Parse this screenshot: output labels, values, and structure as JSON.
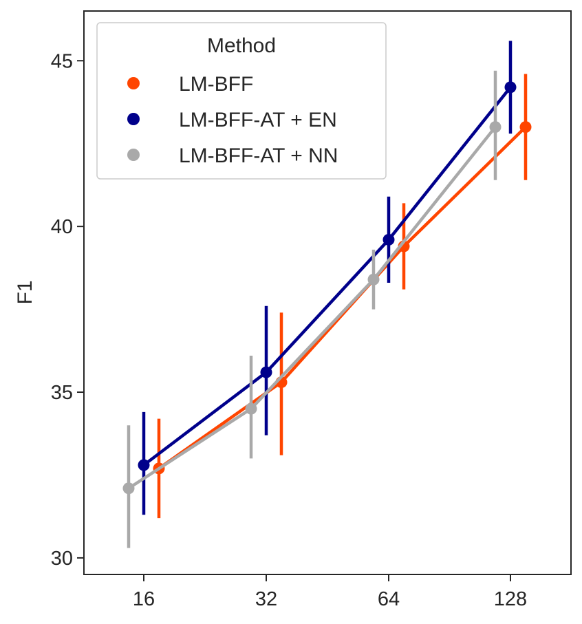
{
  "chart_data": {
    "type": "line",
    "xlabel": "",
    "ylabel": "F1",
    "categories": [
      "16",
      "32",
      "64",
      "128"
    ],
    "ylim": [
      29.5,
      46.5
    ],
    "yticks": [
      30,
      35,
      40,
      45
    ],
    "grid": false,
    "legend": {
      "title": "Method",
      "placement": "top-left"
    },
    "series": [
      {
        "name": "LM-BFF",
        "color": "#ff4500",
        "values": [
          32.7,
          35.3,
          39.4,
          43.0
        ],
        "ci_low": [
          31.2,
          33.1,
          38.1,
          41.4
        ],
        "ci_high": [
          34.2,
          37.4,
          40.7,
          44.6
        ]
      },
      {
        "name": "LM-BFF-AT + EN",
        "color": "#00008b",
        "values": [
          32.8,
          35.6,
          39.6,
          44.2
        ],
        "ci_low": [
          31.3,
          33.7,
          38.3,
          42.8
        ],
        "ci_high": [
          34.4,
          37.6,
          40.9,
          45.6
        ]
      },
      {
        "name": "LM-BFF-AT + NN",
        "color": "#a9a9a9",
        "values": [
          32.1,
          34.5,
          38.4,
          43.0
        ],
        "ci_low": [
          30.3,
          33.0,
          37.5,
          41.4
        ],
        "ci_high": [
          34.0,
          36.1,
          39.3,
          44.7
        ]
      }
    ]
  }
}
